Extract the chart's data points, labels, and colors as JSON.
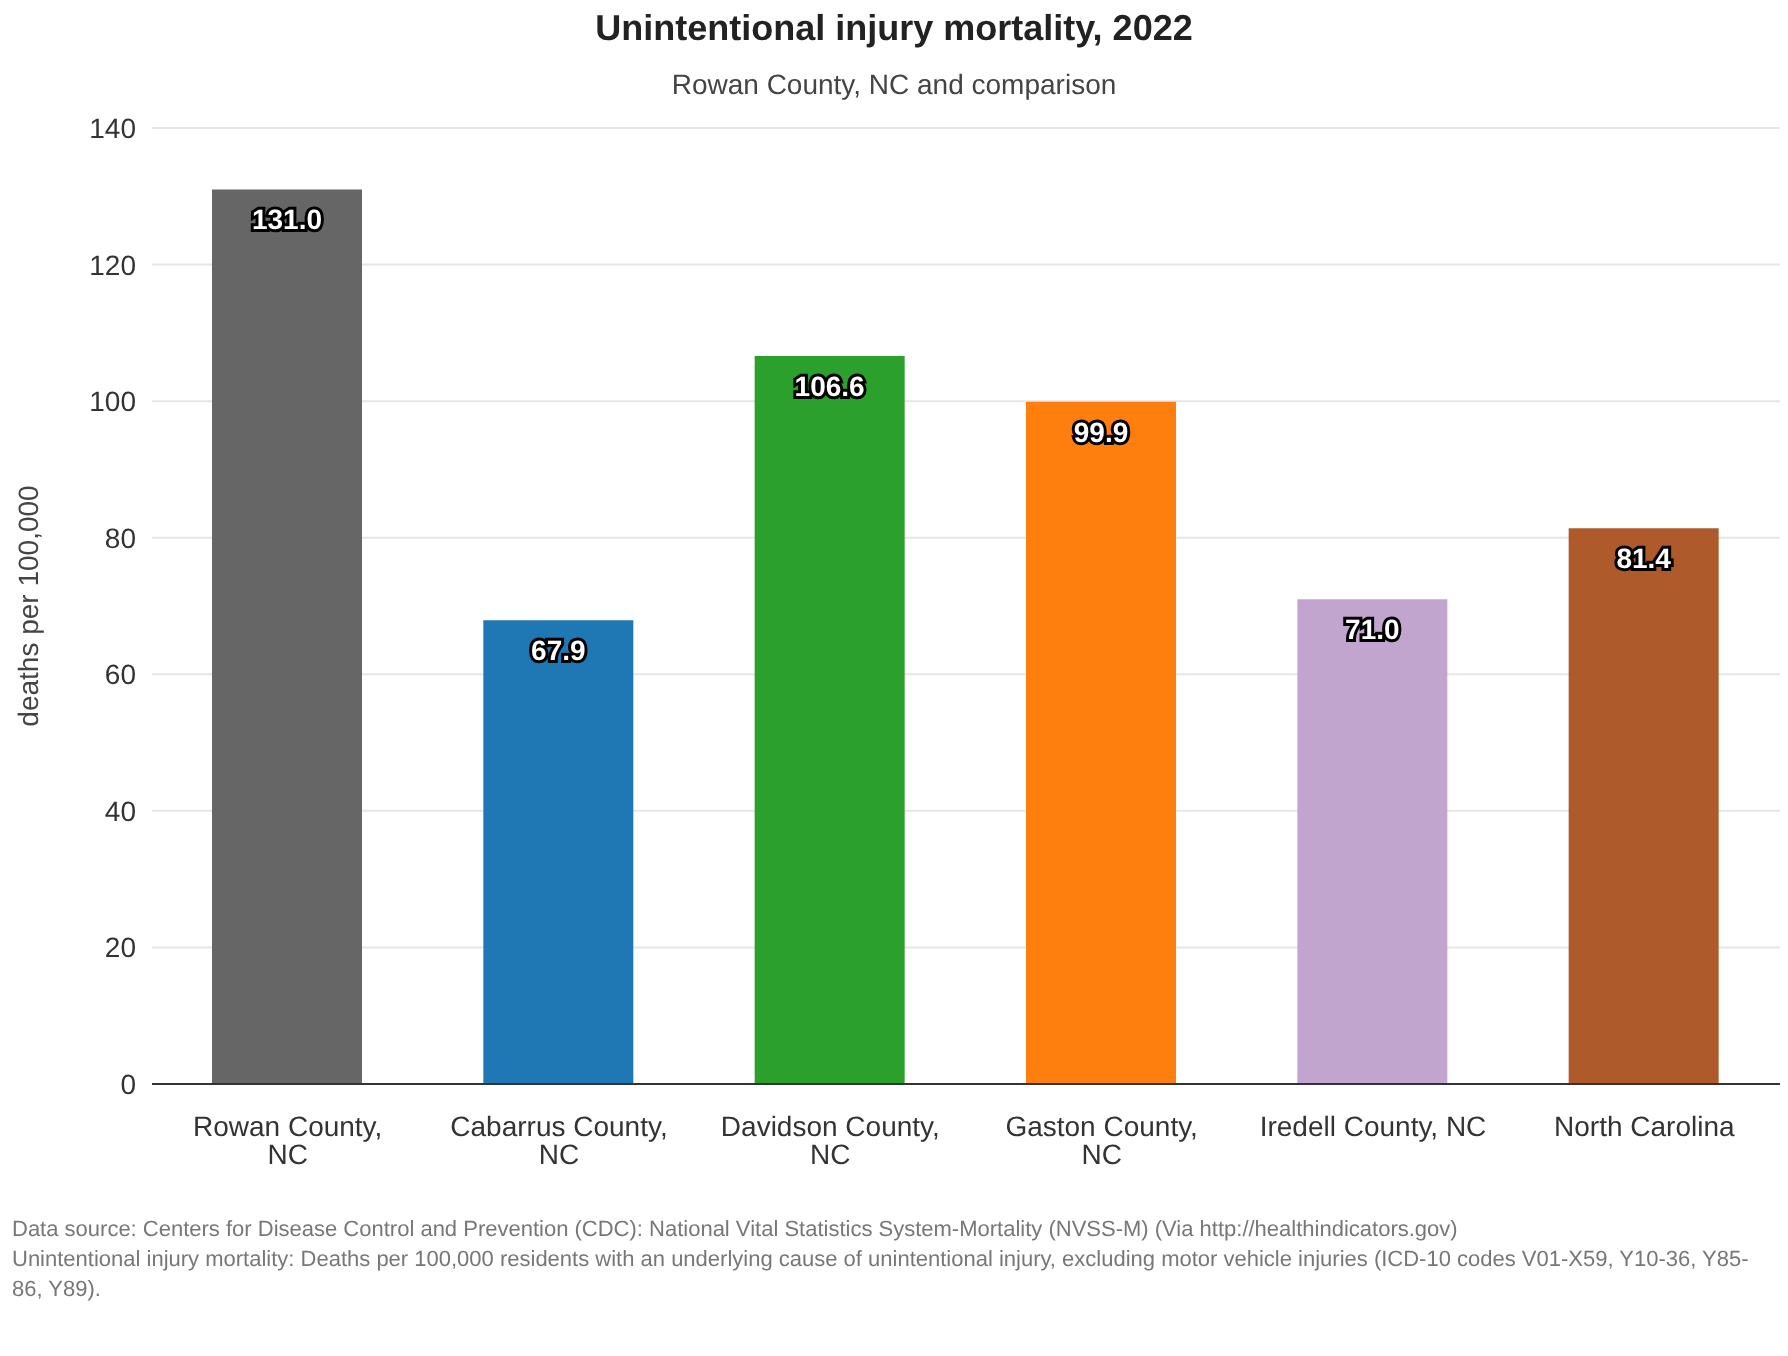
{
  "chart_data": {
    "type": "bar",
    "title": "Unintentional injury mortality, 2022",
    "subtitle": "Rowan County, NC and comparison",
    "ylabel": "deaths per 100,000",
    "categories": [
      "Rowan County, NC",
      "Cabarrus County, NC",
      "Davidson County, NC",
      "Gaston County, NC",
      "Iredell County, NC",
      "North Carolina"
    ],
    "values": [
      131.0,
      67.9,
      106.6,
      99.9,
      71.0,
      81.4
    ],
    "value_labels": [
      "131.0",
      "67.9",
      "106.6",
      "99.9",
      "71.0",
      "81.4"
    ],
    "colors": [
      "#666666",
      "#1f77b4",
      "#2ca02c",
      "#ff7f0e",
      "#c2a5cf",
      "#ae5a2a"
    ],
    "ylim": [
      0,
      140
    ],
    "yticks": [
      0,
      20,
      40,
      60,
      80,
      100,
      120,
      140
    ],
    "grid": "y",
    "annotations": [
      "Data source: Centers for Disease Control and Prevention (CDC): National Vital Statistics System-Mortality (NVSS-M) (Via http://healthindicators.gov)",
      "Unintentional injury mortality: Deaths per 100,000 residents with an underlying cause of unintentional injury, excluding motor vehicle injuries (ICD-10 codes V01-X59, Y10-36, Y85-86, Y89)."
    ]
  }
}
